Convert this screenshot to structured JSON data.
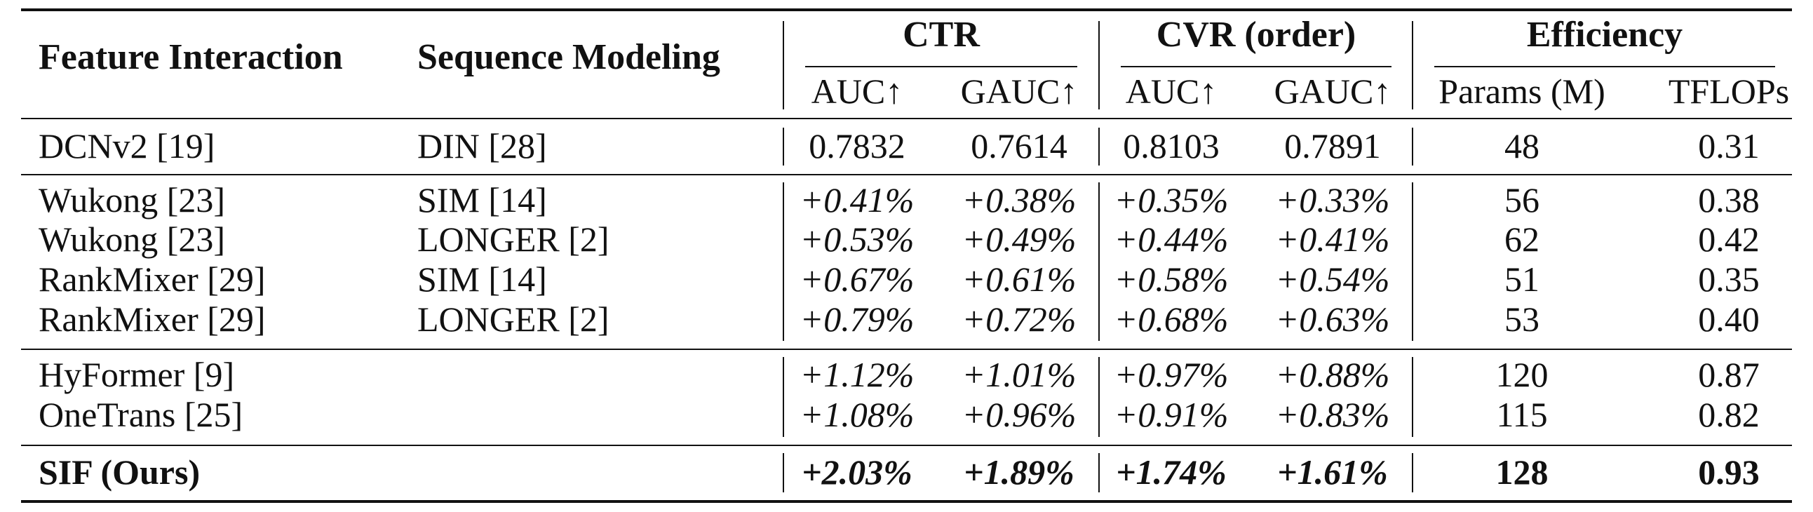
{
  "table": {
    "headers": {
      "feature_interaction": "Feature Interaction",
      "sequence_modeling": "Sequence Modeling",
      "groups": {
        "ctr": "CTR",
        "cvr": "CVR (order)",
        "efficiency": "Efficiency"
      },
      "subheaders": {
        "ctr_auc": "AUC↑",
        "ctr_gauc": "GAUC↑",
        "cvr_auc": "AUC↑",
        "cvr_gauc": "GAUC↑",
        "params": "Params (M)",
        "tflops": "TFLOPs"
      }
    },
    "rows": [
      {
        "fi": "DCNv2 [19]",
        "sm": "DIN [28]",
        "ctr_auc": "0.7832",
        "ctr_gauc": "0.7614",
        "cvr_auc": "0.8103",
        "cvr_gauc": "0.7891",
        "params": "48",
        "tflops": "0.31"
      },
      {
        "fi": "Wukong [23]",
        "sm": "SIM [14]",
        "ctr_auc": "+0.41%",
        "ctr_gauc": "+0.38%",
        "cvr_auc": "+0.35%",
        "cvr_gauc": "+0.33%",
        "params": "56",
        "tflops": "0.38"
      },
      {
        "fi": "Wukong [23]",
        "sm": "LONGER [2]",
        "ctr_auc": "+0.53%",
        "ctr_gauc": "+0.49%",
        "cvr_auc": "+0.44%",
        "cvr_gauc": "+0.41%",
        "params": "62",
        "tflops": "0.42"
      },
      {
        "fi": "RankMixer [29]",
        "sm": "SIM [14]",
        "ctr_auc": "+0.67%",
        "ctr_gauc": "+0.61%",
        "cvr_auc": "+0.58%",
        "cvr_gauc": "+0.54%",
        "params": "51",
        "tflops": "0.35"
      },
      {
        "fi": "RankMixer [29]",
        "sm": "LONGER [2]",
        "ctr_auc": "+0.79%",
        "ctr_gauc": "+0.72%",
        "cvr_auc": "+0.68%",
        "cvr_gauc": "+0.63%",
        "params": "53",
        "tflops": "0.40"
      },
      {
        "fi": "HyFormer [9]",
        "sm": "",
        "ctr_auc": "+1.12%",
        "ctr_gauc": "+1.01%",
        "cvr_auc": "+0.97%",
        "cvr_gauc": "+0.88%",
        "params": "120",
        "tflops": "0.87"
      },
      {
        "fi": "OneTrans [25]",
        "sm": "",
        "ctr_auc": "+1.08%",
        "ctr_gauc": "+0.96%",
        "cvr_auc": "+0.91%",
        "cvr_gauc": "+0.83%",
        "params": "115",
        "tflops": "0.82"
      },
      {
        "fi": "SIF (Ours)",
        "sm": "",
        "ctr_auc": "+2.03%",
        "ctr_gauc": "+1.89%",
        "cvr_auc": "+1.74%",
        "cvr_gauc": "+1.61%",
        "params": "128",
        "tflops": "0.93"
      }
    ]
  }
}
